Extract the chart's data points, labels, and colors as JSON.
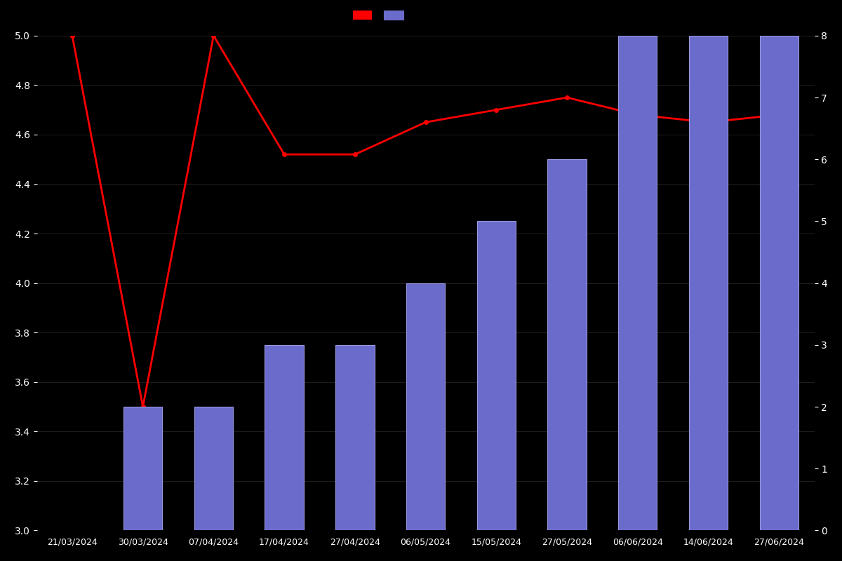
{
  "dates": [
    "21/03/2024",
    "30/03/2024",
    "07/04/2024",
    "17/04/2024",
    "27/04/2024",
    "06/05/2024",
    "15/05/2024",
    "27/05/2024",
    "06/06/2024",
    "14/06/2024",
    "27/06/2024"
  ],
  "bar_dates": [
    "30/03/2024",
    "07/04/2024",
    "17/04/2024",
    "27/04/2024",
    "06/05/2024",
    "15/05/2024",
    "27/05/2024",
    "06/06/2024",
    "14/06/2024",
    "27/06/2024"
  ],
  "bar_values": [
    2,
    2,
    3,
    3,
    4,
    5,
    6,
    8,
    8,
    8
  ],
  "line_y": [
    5.0,
    3.5,
    5.0,
    4.52,
    4.52,
    4.65,
    4.7,
    4.75,
    4.68,
    4.65,
    4.68
  ],
  "bar_color": "#6b6bcc",
  "bar_edge_color": "#9999dd",
  "line_color": "#ff0000",
  "background_color": "#000000",
  "text_color": "#ffffff",
  "left_ylim": [
    3.0,
    5.0
  ],
  "right_ylim": [
    0,
    8
  ],
  "left_yticks": [
    3.0,
    3.2,
    3.4,
    3.6,
    3.8,
    4.0,
    4.2,
    4.4,
    4.6,
    4.8,
    5.0
  ],
  "right_yticks": [
    0,
    1,
    2,
    3,
    4,
    5,
    6,
    7,
    8
  ],
  "tick_color": "#ffffff",
  "grid_color": "#2a2a2a",
  "figsize": [
    12.0,
    8.0
  ],
  "dpi": 100
}
